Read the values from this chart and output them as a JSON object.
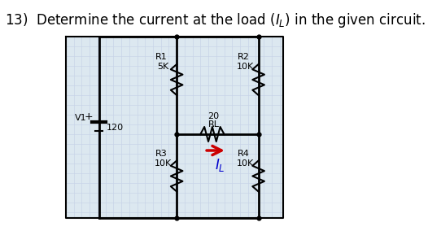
{
  "title": "13)  Determine the current at the load ($I_L$) in the given circuit.",
  "title_fontsize": 12,
  "bg_color": "#ffffff",
  "grid_color": "#c8d4e8",
  "circuit_bg": "#dce8f0",
  "border_color": "#000000",
  "wire_color": "#000000",
  "resistor_color": "#000000",
  "arrow_color": "#cc0000",
  "label_color": "#0000cc",
  "V1_label": "V1",
  "V1_value": "120",
  "R1_label": "R1",
  "R1_value": "5K",
  "R2_label": "R2",
  "R2_value": "10K",
  "R3_label": "R3",
  "R3_value": "10K",
  "R4_label": "R4",
  "R4_value": "10K",
  "RL_label": "RL",
  "RL_value": "20",
  "IL_label": "$I_L$"
}
